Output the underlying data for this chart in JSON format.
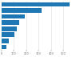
{
  "values": [
    550,
    320,
    185,
    145,
    125,
    105,
    55,
    40
  ],
  "bar_color": "#1f77b4",
  "background_color": "#ffffff",
  "grid_color": "#d9d9d9",
  "xlim": [
    0,
    620
  ],
  "bar_height": 0.75,
  "xtick_values": [
    0,
    100,
    200,
    300,
    400,
    500
  ],
  "figsize": [
    1.0,
    0.71
  ],
  "dpi": 100
}
